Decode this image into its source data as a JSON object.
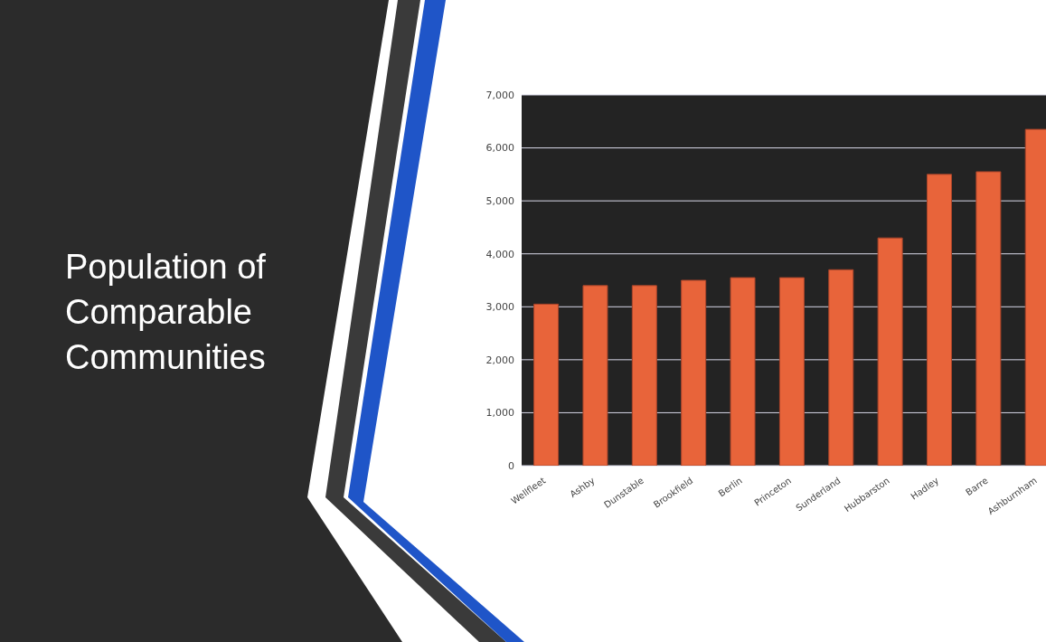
{
  "chart_data": {
    "type": "bar",
    "title": "Population of Comparable Communities",
    "categories": [
      "Wellfleet",
      "Ashby",
      "Dunstable",
      "Brookfield",
      "Berlin",
      "Princeton",
      "Sunderland",
      "Hubbarston",
      "Hadley",
      "Barre",
      "Ashburnham"
    ],
    "values": [
      3050,
      3400,
      3400,
      3500,
      3550,
      3550,
      3700,
      4300,
      5500,
      5550,
      6350
    ],
    "color": "#e8643a",
    "ylim": [
      0,
      7000
    ],
    "yticks": [
      0,
      {
        "value": 1000,
        "label": "1,000"
      },
      {
        "value": 2000,
        "label": "2,000"
      },
      {
        "value": 3000,
        "label": "3,000"
      },
      {
        "value": 4000,
        "label": "4,000"
      },
      {
        "value": 5000,
        "label": "5,000"
      },
      {
        "value": 6000,
        "label": "6,000"
      },
      {
        "value": 7000,
        "label": "7,000"
      }
    ],
    "grid": "y"
  }
}
